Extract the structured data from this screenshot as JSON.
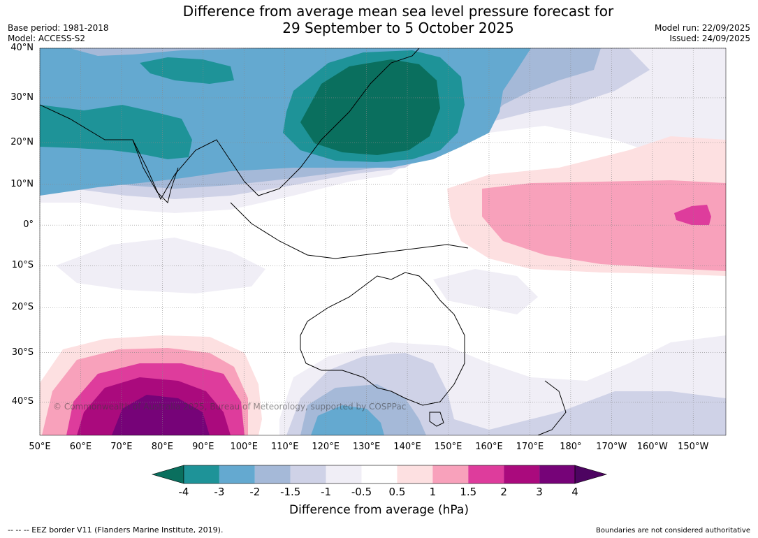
{
  "header": {
    "title_line1": "Difference from average mean sea level pressure forecast for",
    "title_line2": "29 September to 5 October 2025",
    "base_period": "Base period: 1981-2018",
    "model": "Model: ACCESS-S2",
    "model_run": "Model run: 22/09/2025",
    "issued": "Issued: 24/09/2025"
  },
  "map": {
    "latitudes": [
      {
        "label": "40°N",
        "value": 40
      },
      {
        "label": "30°N",
        "value": 30
      },
      {
        "label": "20°N",
        "value": 20
      },
      {
        "label": "10°N",
        "value": 10
      },
      {
        "label": "0°",
        "value": 0
      },
      {
        "label": "10°S",
        "value": -10
      },
      {
        "label": "20°S",
        "value": -20
      },
      {
        "label": "30°S",
        "value": -30
      },
      {
        "label": "40°S",
        "value": -40
      }
    ],
    "longitudes": [
      {
        "label": "50°E",
        "value": 50
      },
      {
        "label": "60°E",
        "value": 60
      },
      {
        "label": "70°E",
        "value": 70
      },
      {
        "label": "80°E",
        "value": 80
      },
      {
        "label": "90°E",
        "value": 90
      },
      {
        "label": "100°E",
        "value": 100
      },
      {
        "label": "110°E",
        "value": 110
      },
      {
        "label": "120°E",
        "value": 120
      },
      {
        "label": "130°E",
        "value": 130
      },
      {
        "label": "140°E",
        "value": 140
      },
      {
        "label": "150°E",
        "value": 150
      },
      {
        "label": "160°E",
        "value": 160
      },
      {
        "label": "170°E",
        "value": 170
      },
      {
        "label": "180°",
        "value": 180
      },
      {
        "label": "170°W",
        "value": 190
      },
      {
        "label": "160°W",
        "value": 200
      },
      {
        "label": "150°W",
        "value": 210
      }
    ],
    "copyright": "© Commonwealth of Australia 2025, Bureau of Meteorology, supported by COSPPac"
  },
  "colorbar": {
    "ticks": [
      "-4",
      "-3",
      "-2",
      "-1.5",
      "-1",
      "-0.5",
      "0.5",
      "1",
      "1.5",
      "2",
      "3",
      "4"
    ],
    "colors": [
      "#1e9398",
      "#64a9d0",
      "#a5b9d8",
      "#cfd2e7",
      "#f0eef6",
      "#ffffff",
      "#fde0e1",
      "#f8a1bb",
      "#de3c9c",
      "#aa0a7d",
      "#760378"
    ],
    "low_extend_color": "#0a6f5e",
    "high_extend_color": "#4d0461",
    "label": "Difference from average (hPa)"
  },
  "footer": {
    "eez_note": "--  --  -- EEZ border V11 (Flanders Marine Institute, 2019).",
    "boundaries_note": "Boundaries are not considered authoritative"
  }
}
